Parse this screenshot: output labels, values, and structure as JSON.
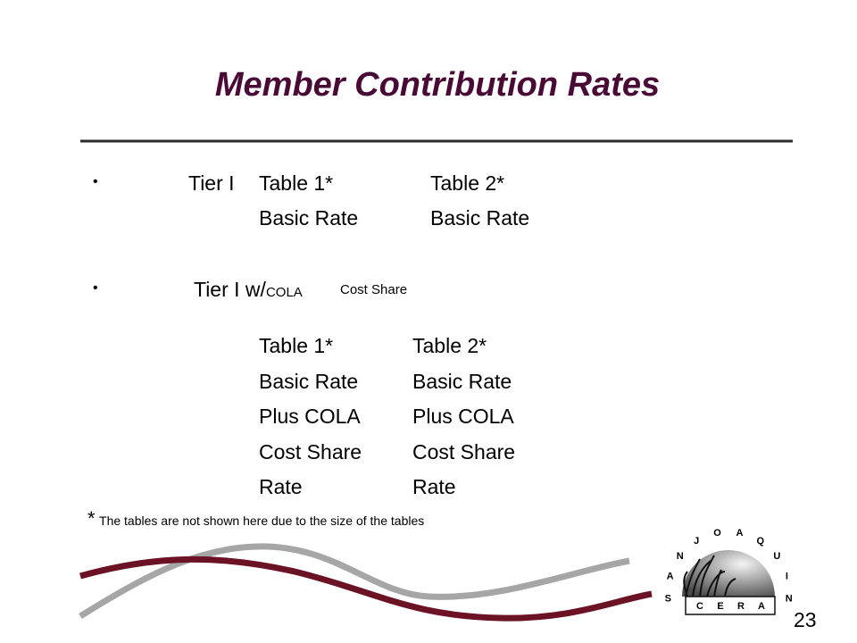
{
  "title": "Member Contribution Rates",
  "bullets": [
    {
      "label": "Tier I",
      "columns": [
        [
          "Table 1*",
          "Basic Rate"
        ],
        [
          "Table 2*",
          "Basic Rate"
        ]
      ]
    },
    {
      "label_parts": [
        "Tier I w/",
        "COLA",
        "Cost Share"
      ],
      "columns": [
        [
          "Table 1*",
          "Basic Rate",
          "Plus COLA",
          "Cost Share",
          "Rate"
        ],
        [
          "Table 2*",
          "Basic Rate",
          "Plus COLA",
          "Cost Share",
          "Rate"
        ]
      ]
    }
  ],
  "footnote": {
    "marker": "*",
    "text": "The tables are not shown here due to the size of the tables"
  },
  "logo": {
    "arc_letters": [
      "S",
      "A",
      "N",
      "J",
      "O",
      "A",
      "Q",
      "U",
      "I",
      "N"
    ],
    "base_letters": [
      "C",
      "E",
      "R",
      "A"
    ]
  },
  "page_number": "23"
}
